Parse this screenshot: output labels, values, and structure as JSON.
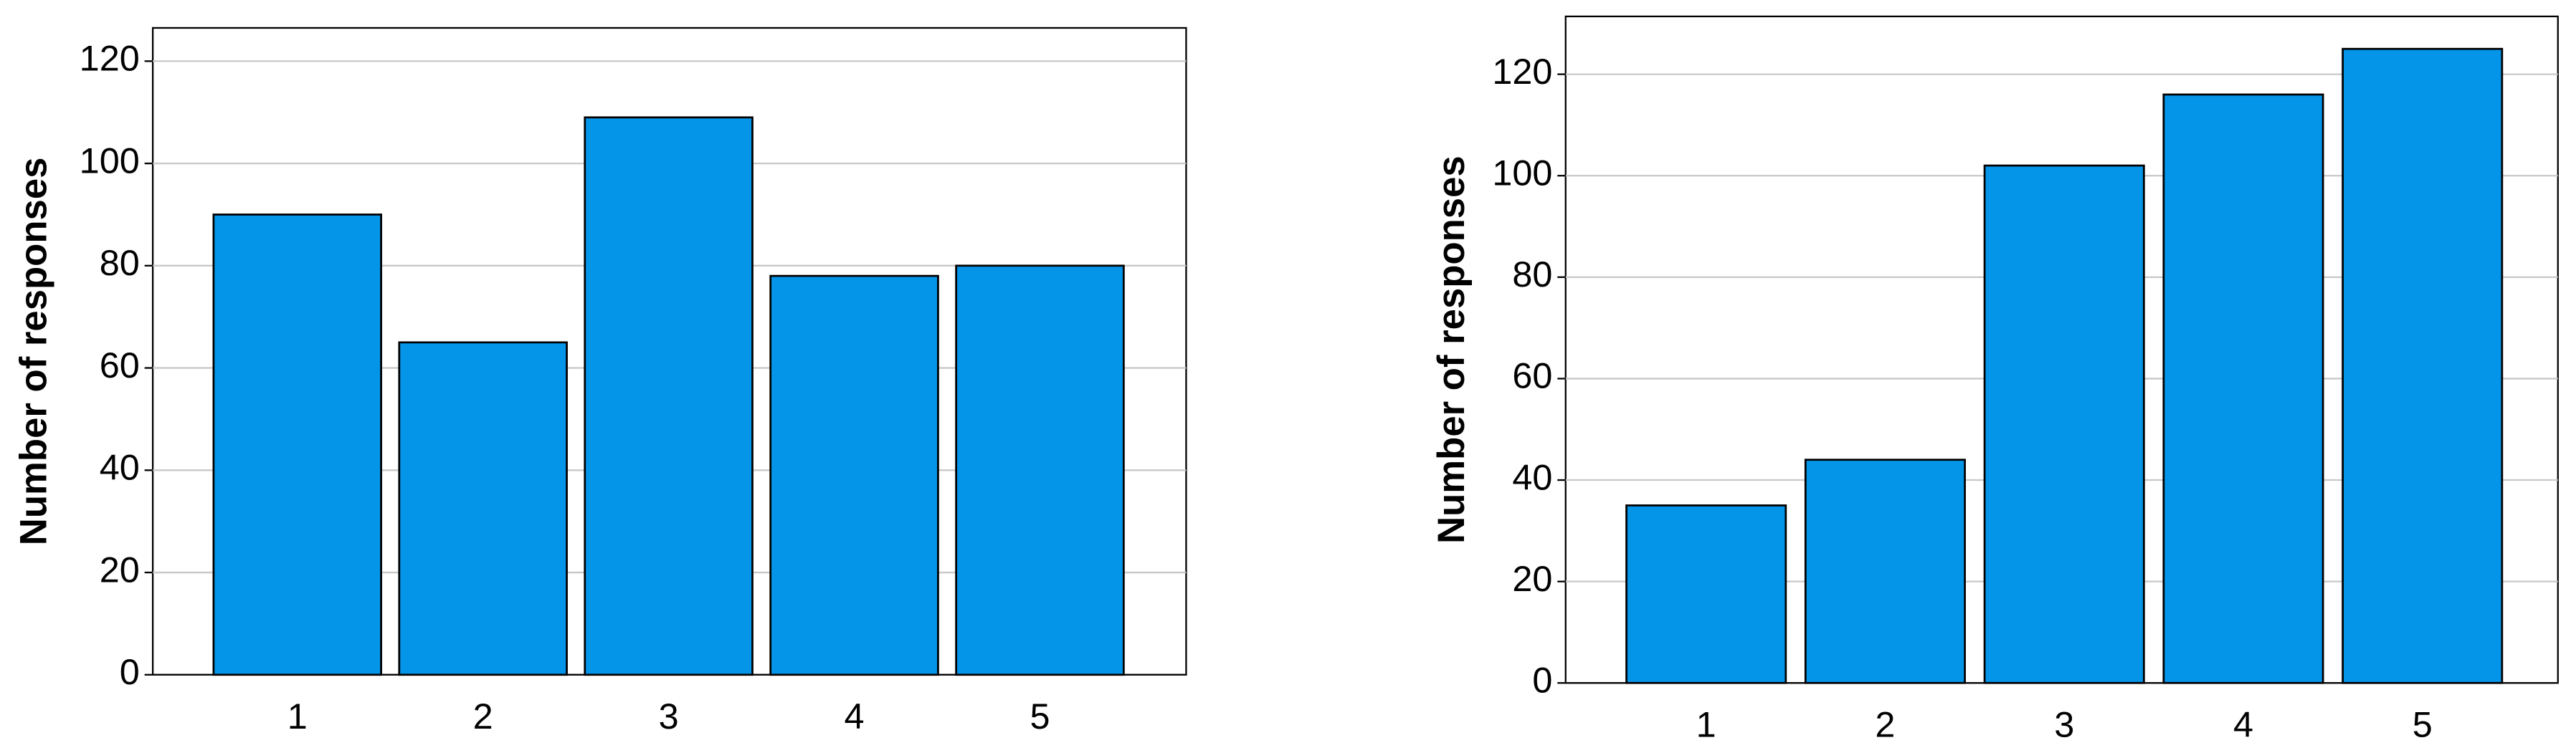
{
  "chart_data": [
    {
      "type": "bar",
      "y_label": "Number of responses",
      "categories": [
        "1",
        "2",
        "3",
        "4",
        "5"
      ],
      "values": [
        90,
        65,
        109,
        78,
        80
      ],
      "color": "#0595e8",
      "ylim": [
        0,
        126.5
      ],
      "yticks": [
        0,
        20,
        40,
        60,
        80,
        100,
        120
      ],
      "grid": true
    },
    {
      "type": "bar",
      "y_label": "Number of responses",
      "categories": [
        "1",
        "2",
        "3",
        "4",
        "5"
      ],
      "values": [
        35,
        44,
        102,
        116,
        125
      ],
      "color": "#0595e8",
      "ylim": [
        0,
        131.4
      ],
      "yticks": [
        0,
        20,
        40,
        60,
        80,
        100,
        120
      ],
      "grid": true
    }
  ]
}
